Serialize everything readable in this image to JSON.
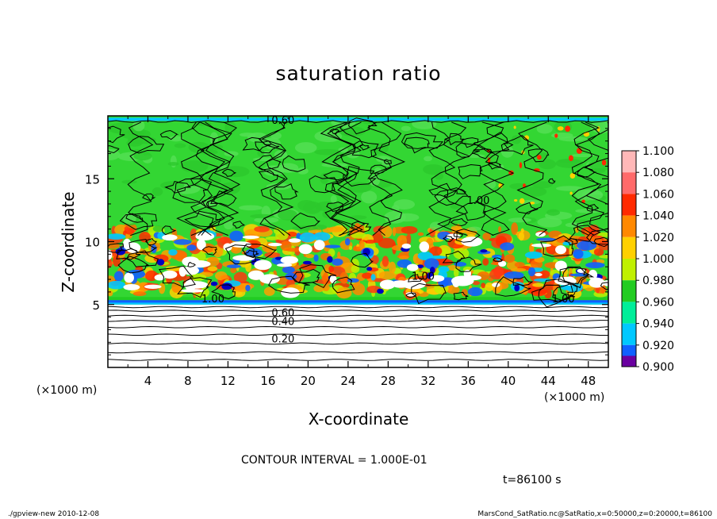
{
  "chart_data": {
    "type": "heatmap",
    "title": "saturation ratio",
    "xlabel": "X-coordinate",
    "ylabel": "Z-coordinate",
    "x_unit_left": "(×1000 m)",
    "x_unit_right": "(×1000 m)",
    "xlim": [
      0,
      50
    ],
    "ylim": [
      0,
      20
    ],
    "x_ticks": [
      "4",
      "8",
      "12",
      "16",
      "20",
      "24",
      "28",
      "32",
      "36",
      "40",
      "44",
      "48"
    ],
    "x_tick_values": [
      4,
      8,
      12,
      16,
      20,
      24,
      28,
      32,
      36,
      40,
      44,
      48
    ],
    "y_ticks": [
      "5",
      "10",
      "15"
    ],
    "y_tick_values": [
      5,
      10,
      15
    ],
    "contour_interval_text": "CONTOUR INTERVAL = 1.000E-01",
    "time_text": "t=86100 s",
    "contour_labels": [
      {
        "text": "0.20",
        "x": 17.5,
        "z": 2.3
      },
      {
        "text": "0.40",
        "x": 17.5,
        "z": 3.7
      },
      {
        "text": "0.60",
        "x": 17.5,
        "z": 4.4
      },
      {
        "text": "1.00",
        "x": 10.5,
        "z": 5.5
      },
      {
        "text": "1.00",
        "x": 31.5,
        "z": 7.3
      },
      {
        "text": "1.00",
        "x": 45.5,
        "z": 5.5
      },
      {
        "text": "1.00",
        "x": 37.0,
        "z": 13.3
      },
      {
        "text": "0.60",
        "x": 17.5,
        "z": 19.7
      }
    ],
    "colorbar": {
      "labels": [
        "1.100",
        "1.080",
        "1.060",
        "1.040",
        "1.020",
        "1.000",
        "0.980",
        "0.960",
        "0.940",
        "0.920",
        "0.900"
      ],
      "colors": [
        "#ffb8b8",
        "#ff6a6a",
        "#ff2a00",
        "#ff8800",
        "#ffd000",
        "#c0f000",
        "#22cc22",
        "#00ee99",
        "#00c8ff",
        "#1060ff",
        "#0000c0",
        "#6a00a0"
      ]
    },
    "colors": {
      "background_green": "#33d633",
      "stable_layer": "#ffffff",
      "high": "#ff3a10",
      "mid_high": "#ffa000",
      "low": "#1060ff",
      "very_low": "#0000c0"
    }
  },
  "footer": {
    "left": "./gpview-new  2010-12-08",
    "right": "MarsCond_SatRatio.nc@SatRatio,x=0:50000,z=0:20000,t=86100"
  }
}
